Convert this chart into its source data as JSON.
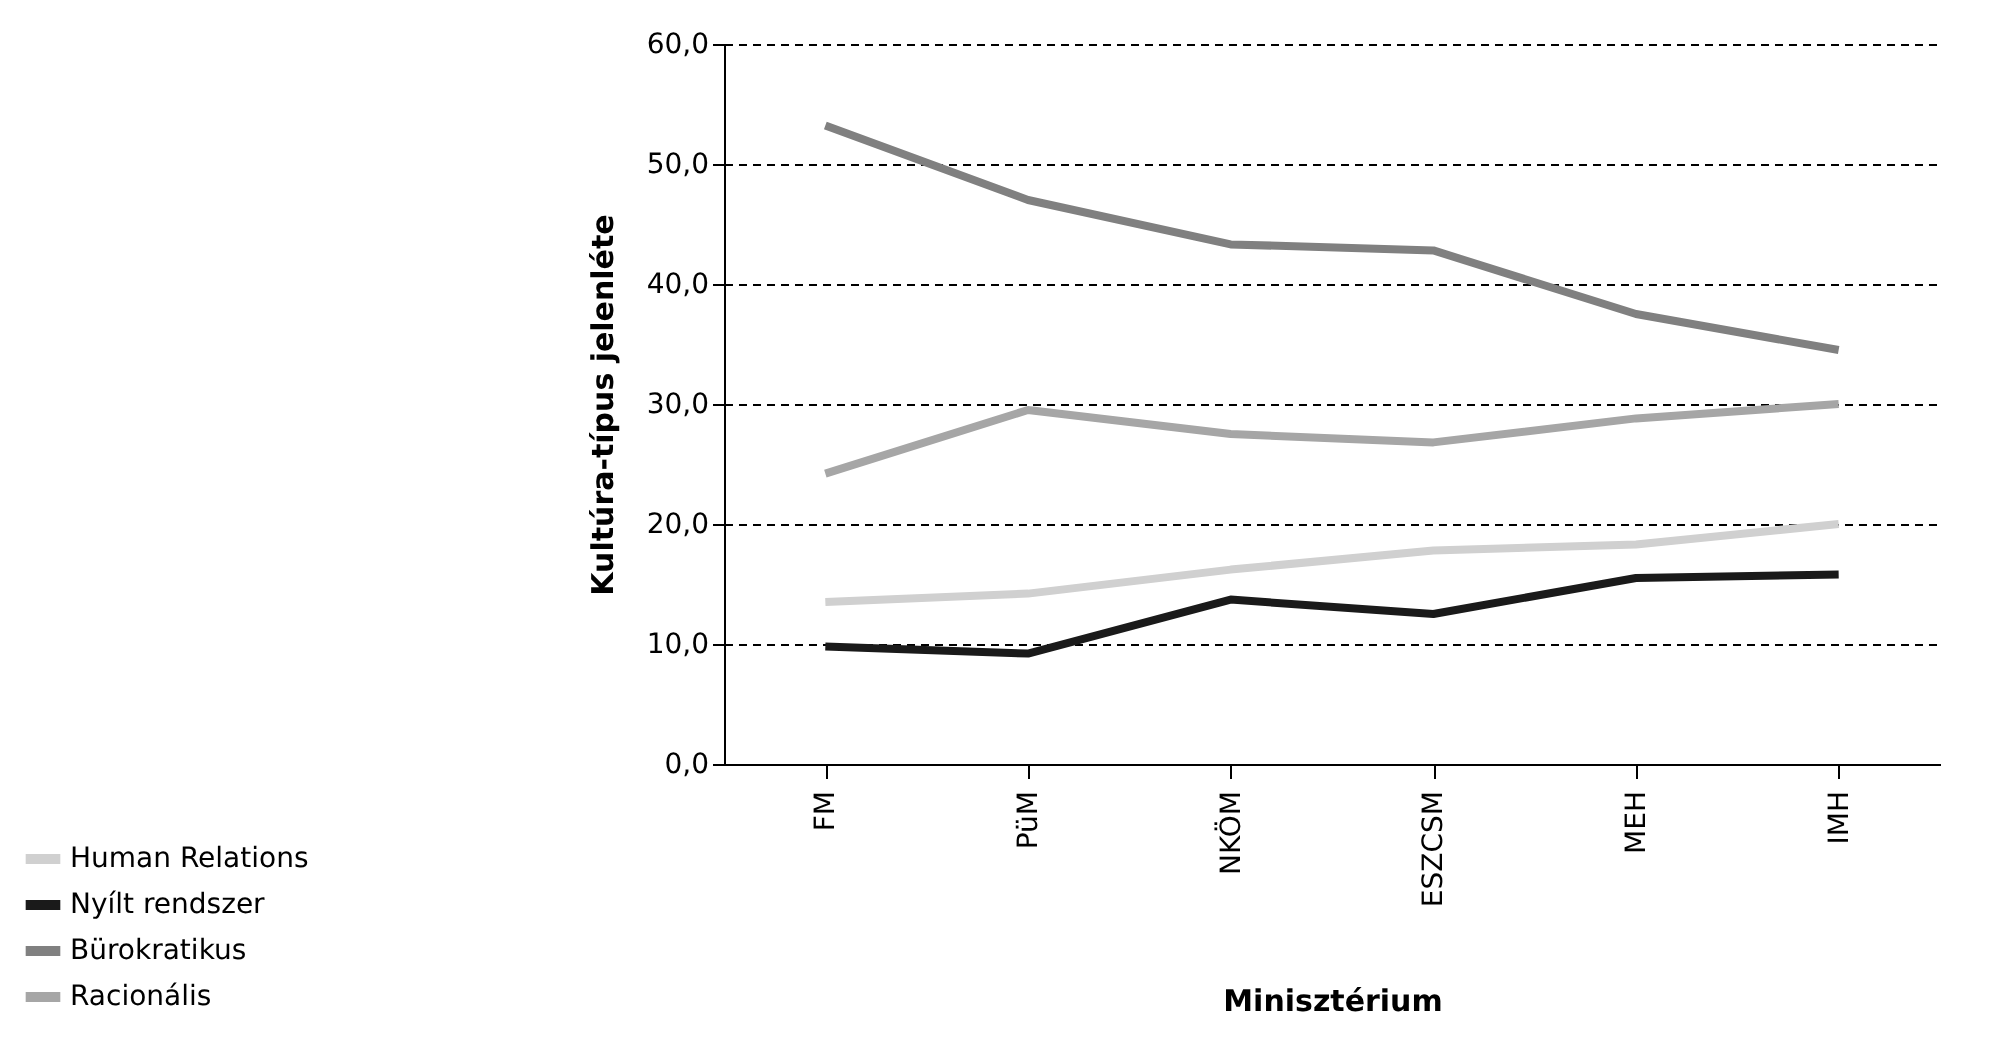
{
  "chart_data": {
    "type": "line",
    "xlabel": "Minisztérium",
    "ylabel": "Kultúra-típus jelenléte",
    "categories": [
      "FM",
      "PüM",
      "NKÖM",
      "ESZCSM",
      "MEH",
      "IMH"
    ],
    "series": [
      {
        "name": "Human Relations",
        "color": "#d0d0d0",
        "values": [
          13.5,
          14.2,
          16.2,
          17.8,
          18.3,
          20.0
        ]
      },
      {
        "name": "Nyílt rendszer",
        "color": "#1a1a1a",
        "values": [
          9.8,
          9.2,
          13.7,
          12.5,
          15.5,
          15.8
        ]
      },
      {
        "name": "Bürokratikus",
        "color": "#808080",
        "values": [
          53.2,
          47.0,
          43.3,
          42.8,
          37.5,
          34.5
        ]
      },
      {
        "name": "Racionális",
        "color": "#a6a6a6",
        "values": [
          24.2,
          29.5,
          27.5,
          26.8,
          28.8,
          30.0
        ]
      }
    ],
    "ylim": [
      0,
      60
    ],
    "yticks": [
      {
        "value": 0,
        "label": "0,0"
      },
      {
        "value": 10,
        "label": "10,0"
      },
      {
        "value": 20,
        "label": "20,0"
      },
      {
        "value": 30,
        "label": "30,0"
      },
      {
        "value": 40,
        "label": "40,0"
      },
      {
        "value": 50,
        "label": "50,0"
      },
      {
        "value": 60,
        "label": "60,0"
      }
    ],
    "grid": "y",
    "legend": "bottom left",
    "marker": "none",
    "line_style": "solid"
  }
}
